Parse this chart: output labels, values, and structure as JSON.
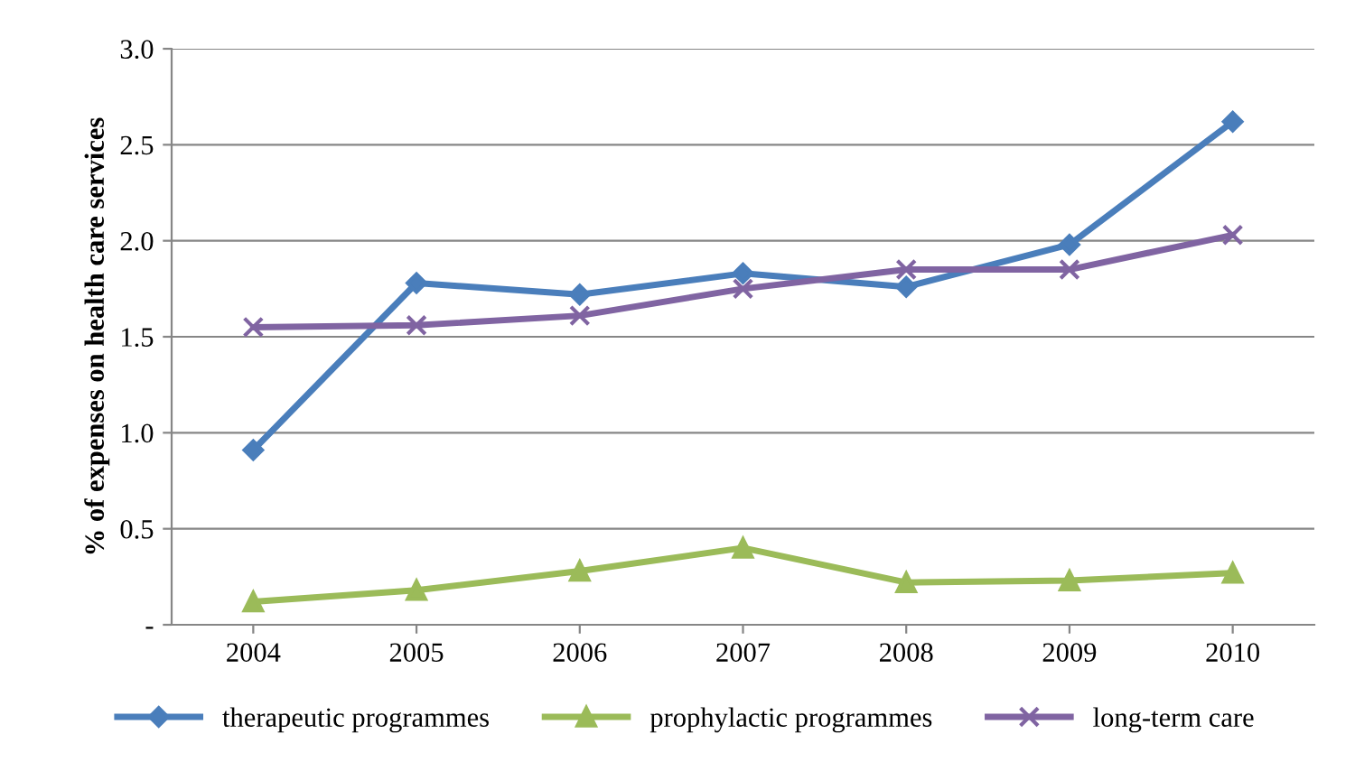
{
  "chart_data": {
    "type": "line",
    "ylabel": "% of expenses on health care services",
    "categories": [
      "2004",
      "2005",
      "2006",
      "2007",
      "2008",
      "2009",
      "2010"
    ],
    "series": [
      {
        "name": "therapeutic programmes",
        "color": "#4a7ebb",
        "marker": "diamond",
        "values": [
          0.91,
          1.78,
          1.72,
          1.83,
          1.76,
          1.98,
          2.62
        ]
      },
      {
        "name": "prophylactic programmes",
        "color": "#9bbb59",
        "marker": "triangle",
        "values": [
          0.12,
          0.18,
          0.28,
          0.4,
          0.22,
          0.23,
          0.27
        ]
      },
      {
        "name": "long-term care",
        "color": "#8064a2",
        "marker": "cross",
        "values": [
          1.55,
          1.56,
          1.61,
          1.75,
          1.85,
          1.85,
          2.03
        ]
      }
    ],
    "ylim": [
      0,
      3.0
    ],
    "yticks": [
      {
        "value": 0,
        "label": "-"
      },
      {
        "value": 0.5,
        "label": "0.5"
      },
      {
        "value": 1.0,
        "label": "1.0"
      },
      {
        "value": 1.5,
        "label": "1.5"
      },
      {
        "value": 2.0,
        "label": "2.0"
      },
      {
        "value": 2.5,
        "label": "2.5"
      },
      {
        "value": 3.0,
        "label": "3.0"
      }
    ],
    "grid": "y",
    "legend": "bottom",
    "line_style": "solid"
  }
}
